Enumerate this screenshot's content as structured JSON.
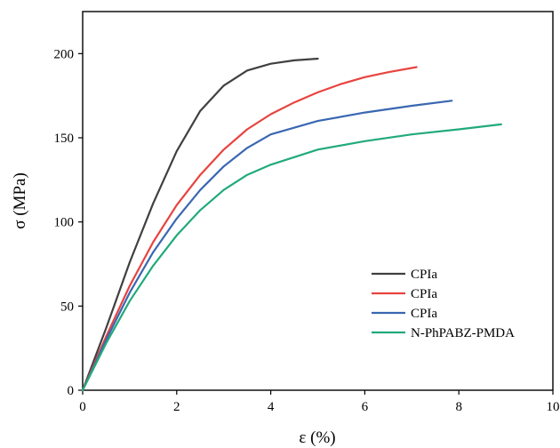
{
  "chart_data": {
    "type": "line",
    "xlabel": "ε (%)",
    "ylabel": "σ (MPa)",
    "xlim": [
      0,
      10
    ],
    "ylim": [
      0,
      225
    ],
    "xticks": [
      0,
      2,
      4,
      6,
      8,
      10
    ],
    "yticks": [
      0,
      50,
      100,
      150,
      200
    ],
    "grid": false,
    "legend_position": "bottom-right",
    "series": [
      {
        "name": "CPIa",
        "color": "#404040",
        "x": [
          0,
          0.5,
          1,
          1.5,
          2,
          2.5,
          3,
          3.5,
          4,
          4.5,
          5.0
        ],
        "y": [
          0,
          37,
          76,
          111,
          142,
          166,
          181,
          190,
          194,
          196,
          197
        ]
      },
      {
        "name": "CPIa",
        "color": "#e8433f",
        "x": [
          0,
          0.5,
          1,
          1.5,
          2,
          2.5,
          3,
          3.5,
          4,
          4.5,
          5,
          5.5,
          6,
          6.5,
          7.1
        ],
        "y": [
          0,
          32,
          62,
          88,
          110,
          128,
          143,
          155,
          164,
          171,
          177,
          182,
          186,
          189,
          192
        ]
      },
      {
        "name": "CPIa",
        "color": "#3a67b1",
        "x": [
          0,
          0.5,
          1,
          1.5,
          2,
          2.5,
          3,
          3.5,
          4,
          5,
          6,
          7,
          7.85
        ],
        "y": [
          0,
          30,
          58,
          82,
          102,
          119,
          133,
          144,
          152,
          160,
          165,
          169,
          172
        ]
      },
      {
        "name": "N-PhPABZ-PMDA",
        "color": "#22aa7a",
        "x": [
          0,
          0.5,
          1,
          1.5,
          2,
          2.5,
          3,
          3.5,
          4,
          5,
          6,
          7,
          8,
          8.9
        ],
        "y": [
          0,
          28,
          53,
          74,
          92,
          107,
          119,
          128,
          134,
          143,
          148,
          152,
          155,
          158
        ]
      }
    ]
  }
}
